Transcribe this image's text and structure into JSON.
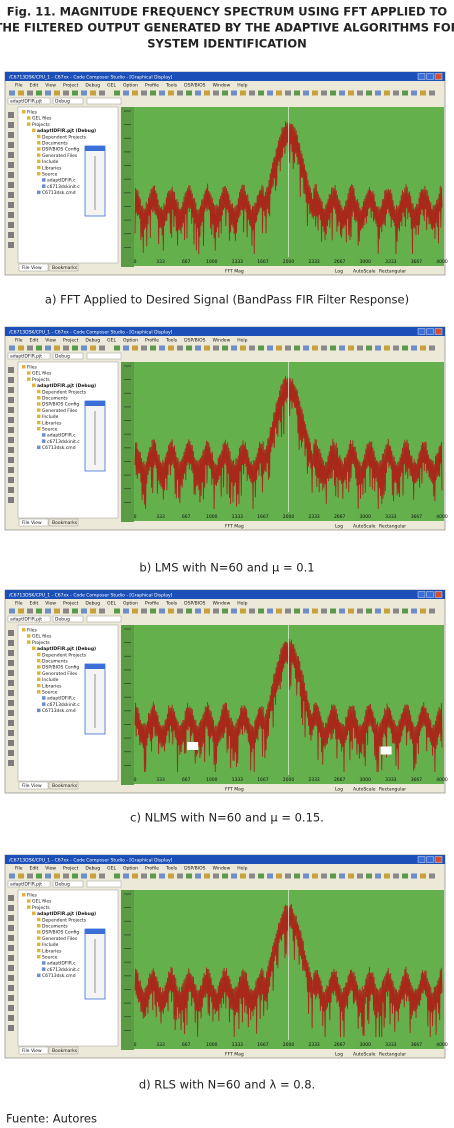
{
  "figure": {
    "title": [
      "Fig. 11. MAGNITUDE FREQUENCY SPECTRUM USING FFT APPLIED TO",
      "THE FILTERED OUTPUT GENERATED BY THE ADAPTIVE ALGORITHMS FOR",
      "SYSTEM IDENTIFICATION"
    ],
    "source": "Fuente: Autores"
  },
  "window": {
    "title": "/C6713DSK/CPU_1 - C67xx - Code Composer Studio - [Graphical Display]",
    "menu": [
      "File",
      "Edit",
      "View",
      "Project",
      "Debug",
      "GEL",
      "Option",
      "Profile",
      "Tools",
      "DSP/BIOS",
      "Window",
      "Help"
    ],
    "project": "adaptIDFIR.pjt",
    "config": "Debug",
    "tree": [
      "Files",
      "GEL files",
      "Projects",
      "adaptIDFIR.pjt (Debug)",
      "Dependent Projects",
      "Documents",
      "DSP/BIOS Config",
      "Generated Files",
      "Include",
      "Libraries",
      "Source",
      "adaptIDFIR.c",
      "c6713dskinit.c",
      "C6713dsk.cmd"
    ],
    "tabs": [
      "File View",
      "Bookmarks"
    ],
    "xticks": [
      "0",
      "333",
      "667",
      "1000",
      "1333",
      "1667",
      "2000",
      "2333",
      "2667",
      "3000",
      "3333",
      "3667",
      "4000"
    ],
    "status": [
      "FFT Mag",
      "Log",
      "AutoScale",
      "Rectangular"
    ]
  },
  "panels": [
    {
      "caption": "a) FFT Applied to Desired Signal (BandPass FIR Filter Response)"
    },
    {
      "caption": "b) LMS with N=60 and μ = 0.1"
    },
    {
      "caption": "c) NLMS with N=60 and μ = 0.15."
    },
    {
      "caption": "d) RLS with N=60 and λ = 0.8."
    }
  ]
}
